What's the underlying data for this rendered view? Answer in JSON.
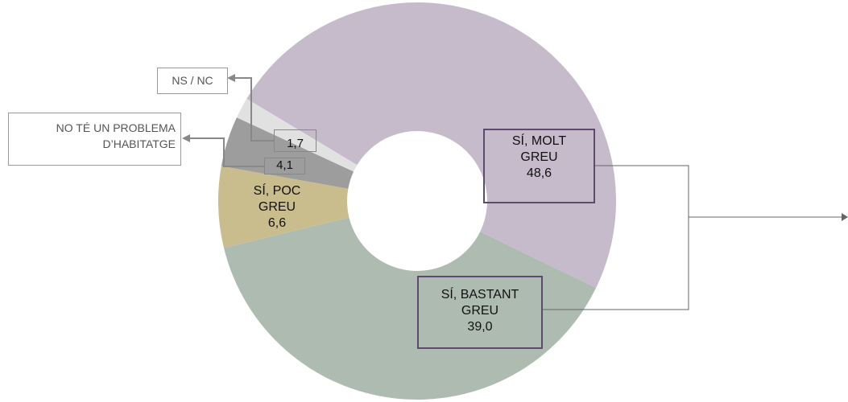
{
  "chart_data": {
    "type": "donut",
    "categories": [
      "SÍ, MOLT GREU",
      "SÍ, BASTANT GREU",
      "SÍ, POC GREU",
      "NO TÉ UN PROBLEMA D’HABITATGE",
      "NS / NC"
    ],
    "values": [
      48.6,
      39.0,
      6.6,
      4.1,
      1.7
    ],
    "value_labels": [
      "48,6",
      "39,0",
      "6,6",
      "4,1",
      "1,7"
    ],
    "colors": [
      "#c6bbca",
      "#aebbb1",
      "#c9bd8e",
      "#9d9d9d",
      "#e1e1e1"
    ]
  }
}
